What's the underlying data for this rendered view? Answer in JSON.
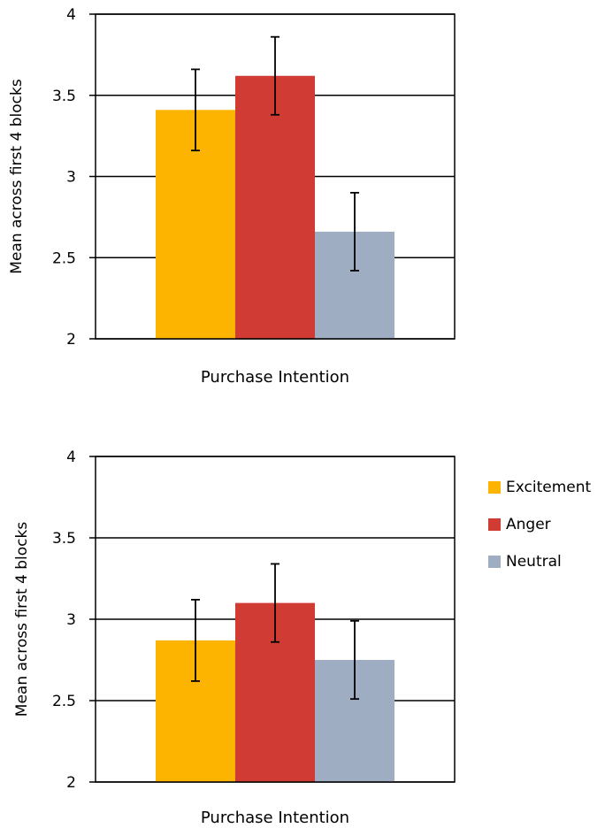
{
  "colors": {
    "Excitement": "#FDB400",
    "Anger": "#D03C33",
    "Neutral": "#9FADC3"
  },
  "legend": [
    {
      "name": "Excitement",
      "color": "#FDB400"
    },
    {
      "name": "Anger",
      "color": "#D03C33"
    },
    {
      "name": "Neutral",
      "color": "#9FADC3"
    }
  ],
  "chart_data": [
    {
      "type": "bar",
      "title": "",
      "xlabel": "Purchase Intention",
      "ylabel": "Mean across first 4 blocks",
      "ylim": [
        2,
        4
      ],
      "yticks": [
        2,
        2.5,
        3,
        3.5,
        4
      ],
      "ytick_labels": [
        "2",
        "2.5",
        "3",
        "3.5",
        "4"
      ],
      "grid": true,
      "series": [
        {
          "name": "Excitement",
          "value": 3.41,
          "error": 0.25
        },
        {
          "name": "Anger",
          "value": 3.62,
          "error": 0.24
        },
        {
          "name": "Neutral",
          "value": 2.66,
          "error": 0.24
        }
      ]
    },
    {
      "type": "bar",
      "title": "",
      "xlabel": "Purchase Intention",
      "ylabel": "Mean across first 4 blocks",
      "ylim": [
        2,
        4
      ],
      "yticks": [
        2,
        2.5,
        3,
        3.5,
        4
      ],
      "ytick_labels": [
        "2",
        "2.5",
        "3",
        "3.5",
        "4"
      ],
      "grid": true,
      "legend_position": "right",
      "series": [
        {
          "name": "Excitement",
          "value": 2.87,
          "error": 0.25
        },
        {
          "name": "Anger",
          "value": 3.1,
          "error": 0.24
        },
        {
          "name": "Neutral",
          "value": 2.75,
          "error": 0.24
        }
      ]
    }
  ]
}
